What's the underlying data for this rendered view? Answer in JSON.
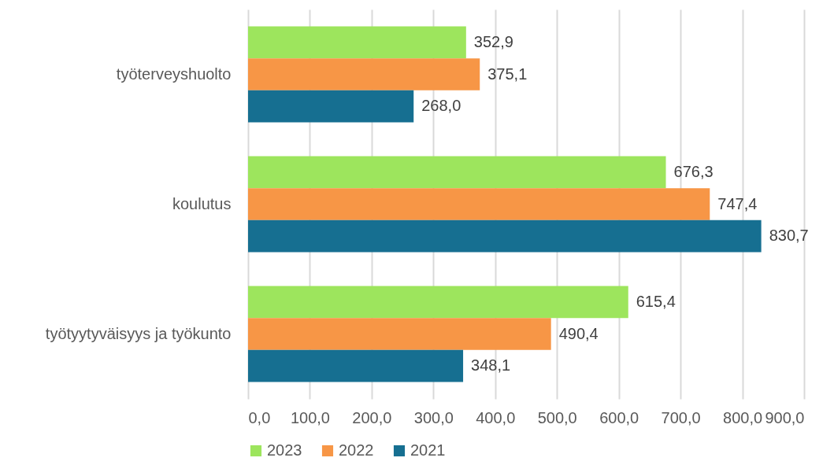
{
  "chart_data": {
    "type": "bar",
    "orientation": "horizontal",
    "categories": [
      "työterveyshuolto",
      "koulutus",
      "työtyytyväisyys ja työkunto"
    ],
    "series": [
      {
        "name": "2023",
        "color": "#9de55d",
        "values": [
          352.9,
          676.3,
          615.4
        ],
        "value_labels": [
          "352,9",
          "676,3",
          "615,4"
        ]
      },
      {
        "name": "2022",
        "color": "#f79646",
        "values": [
          375.1,
          747.4,
          490.4
        ],
        "value_labels": [
          "375,1",
          "747,4",
          "490,4"
        ]
      },
      {
        "name": "2021",
        "color": "#166f91",
        "values": [
          268.0,
          830.7,
          348.1
        ],
        "value_labels": [
          "268,0",
          "830,7",
          "348,1"
        ]
      }
    ],
    "xlim": [
      0,
      900
    ],
    "xticks": [
      {
        "value": 0,
        "label": "0,0"
      },
      {
        "value": 100,
        "label": "100,0"
      },
      {
        "value": 200,
        "label": "200,0"
      },
      {
        "value": 300,
        "label": "300,0"
      },
      {
        "value": 400,
        "label": "400,0"
      },
      {
        "value": 500,
        "label": "500,0"
      },
      {
        "value": 600,
        "label": "600,0"
      },
      {
        "value": 700,
        "label": "700,0"
      },
      {
        "value": 800,
        "label": "800,0"
      },
      {
        "value": 900,
        "label": "900,0"
      }
    ],
    "grid": "x",
    "legend": "bottom"
  }
}
